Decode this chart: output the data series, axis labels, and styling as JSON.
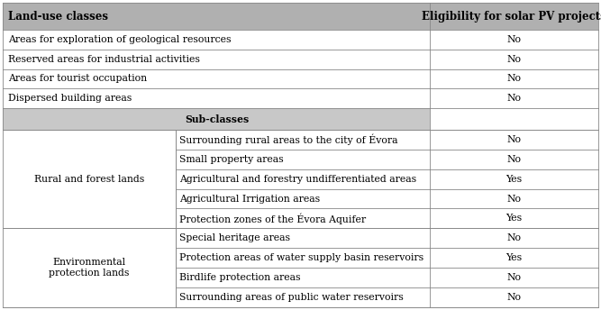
{
  "header": [
    "Land-use classes",
    "Eligibility for solar PV projects"
  ],
  "header_bg": "#b0b0b0",
  "subclasses_header": "Sub-classes",
  "subclasses_bg": "#c8c8c8",
  "col_split": 0.718,
  "sub_col_split": 0.29,
  "simple_rows": [
    [
      "Areas for exploration of geological resources",
      "No"
    ],
    [
      "Reserved areas for industrial activities",
      "No"
    ],
    [
      "Areas for tourist occupation",
      "No"
    ],
    [
      "Dispersed building areas",
      "No"
    ]
  ],
  "grouped_rows": [
    {
      "group_label": "Rural and forest lands",
      "subrows": [
        [
          "Surrounding rural areas to the city of Évora",
          "No"
        ],
        [
          "Small property areas",
          "No"
        ],
        [
          "Agricultural and forestry undifferentiated areas",
          "Yes"
        ],
        [
          "Agricultural Irrigation areas",
          "No"
        ],
        [
          "Protection zones of the Évora Aquifer",
          "Yes"
        ]
      ]
    },
    {
      "group_label": "Environmental\nprotection lands",
      "subrows": [
        [
          "Special heritage areas",
          "No"
        ],
        [
          "Protection areas of water supply basin reservoirs",
          "Yes"
        ],
        [
          "Birdlife protection areas",
          "No"
        ],
        [
          "Surrounding areas of public water reservoirs",
          "No"
        ]
      ]
    }
  ],
  "bg_color": "#ffffff",
  "border_color": "#888888",
  "font_size": 7.8,
  "header_font_size": 8.5,
  "lw": 0.6
}
